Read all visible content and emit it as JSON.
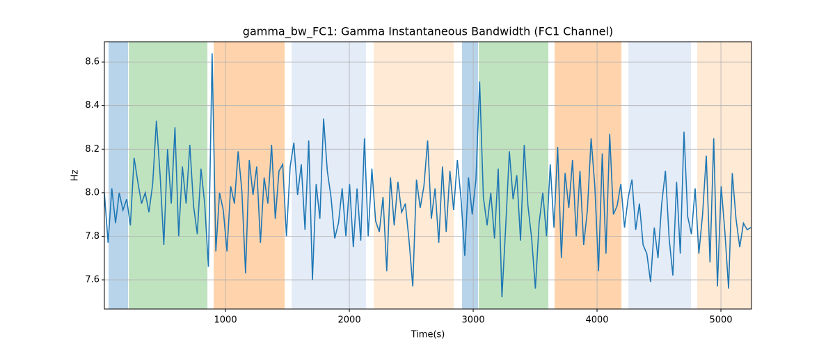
{
  "chart_data": {
    "type": "line",
    "title": "gamma_bw_FC1: Gamma Instantaneous Bandwidth (FC1 Channel)",
    "xlabel": "Time(s)",
    "ylabel": "Hz",
    "x": [
      22,
      52,
      82,
      112,
      142,
      172,
      202,
      232,
      262,
      292,
      322,
      352,
      382,
      412,
      442,
      472,
      502,
      532,
      562,
      592,
      622,
      652,
      682,
      712,
      742,
      772,
      802,
      832,
      862,
      892,
      922,
      952,
      982,
      1012,
      1042,
      1072,
      1102,
      1132,
      1162,
      1192,
      1222,
      1252,
      1282,
      1312,
      1342,
      1372,
      1402,
      1432,
      1462,
      1492,
      1522,
      1552,
      1582,
      1612,
      1642,
      1672,
      1702,
      1732,
      1762,
      1792,
      1822,
      1852,
      1882,
      1912,
      1942,
      1972,
      2002,
      2032,
      2062,
      2092,
      2122,
      2152,
      2182,
      2212,
      2242,
      2272,
      2302,
      2332,
      2362,
      2392,
      2422,
      2452,
      2482,
      2512,
      2542,
      2572,
      2602,
      2632,
      2662,
      2692,
      2722,
      2752,
      2782,
      2812,
      2842,
      2872,
      2902,
      2932,
      2962,
      2992,
      3022,
      3052,
      3082,
      3112,
      3142,
      3172,
      3202,
      3232,
      3262,
      3292,
      3322,
      3352,
      3382,
      3412,
      3442,
      3472,
      3502,
      3532,
      3562,
      3592,
      3622,
      3652,
      3682,
      3712,
      3742,
      3772,
      3802,
      3832,
      3862,
      3892,
      3922,
      3952,
      3982,
      4012,
      4042,
      4072,
      4102,
      4132,
      4162,
      4192,
      4222,
      4252,
      4282,
      4312,
      4342,
      4372,
      4402,
      4432,
      4462,
      4492,
      4522,
      4552,
      4582,
      4612,
      4642,
      4672,
      4702,
      4732,
      4762,
      4792,
      4822,
      4852,
      4882,
      4912,
      4942,
      4972,
      5002,
      5032,
      5062,
      5092,
      5122,
      5152,
      5182,
      5212,
      5242
    ],
    "values": [
      8.0,
      7.77,
      8.02,
      7.86,
      8.0,
      7.92,
      7.97,
      7.85,
      8.16,
      8.05,
      7.95,
      8.0,
      7.91,
      8.04,
      8.33,
      8.08,
      7.76,
      8.2,
      7.95,
      8.3,
      7.8,
      8.12,
      7.95,
      8.22,
      7.94,
      7.81,
      8.11,
      7.95,
      7.66,
      8.64,
      7.73,
      8.0,
      7.92,
      7.73,
      8.03,
      7.95,
      8.19,
      8.01,
      7.63,
      8.15,
      7.99,
      8.12,
      7.77,
      8.07,
      7.95,
      8.22,
      7.88,
      8.1,
      8.13,
      7.8,
      8.12,
      8.23,
      7.99,
      8.13,
      7.83,
      8.24,
      7.6,
      8.04,
      7.88,
      8.34,
      8.1,
      7.98,
      7.79,
      7.86,
      8.02,
      7.8,
      8.04,
      7.75,
      8.02,
      7.78,
      8.25,
      7.8,
      8.11,
      7.87,
      7.82,
      7.98,
      7.64,
      8.07,
      7.85,
      8.05,
      7.91,
      7.95,
      7.78,
      7.57,
      8.06,
      7.93,
      8.03,
      8.24,
      7.88,
      8.02,
      7.77,
      8.12,
      7.82,
      8.1,
      7.92,
      8.15,
      7.97,
      7.71,
      8.07,
      7.9,
      8.06,
      8.51,
      7.98,
      7.85,
      8.0,
      7.79,
      8.11,
      7.52,
      7.84,
      8.19,
      7.97,
      8.08,
      7.78,
      8.22,
      7.94,
      7.79,
      7.56,
      7.86,
      8.0,
      7.8,
      8.13,
      7.84,
      8.21,
      7.7,
      8.09,
      7.93,
      8.15,
      7.8,
      8.1,
      7.76,
      7.92,
      8.25,
      8.03,
      7.64,
      8.18,
      7.72,
      8.27,
      7.9,
      7.94,
      8.04,
      7.84,
      7.98,
      8.06,
      7.83,
      7.95,
      7.76,
      7.72,
      7.59,
      7.84,
      7.7,
      7.95,
      8.1,
      7.79,
      7.62,
      8.05,
      7.72,
      8.28,
      7.89,
      7.81,
      8.02,
      7.72,
      7.9,
      8.17,
      7.68,
      8.25,
      7.57,
      8.03,
      7.82,
      7.56,
      8.09,
      7.88,
      7.75,
      7.86,
      7.83,
      7.84
    ],
    "color": "#1f77b4",
    "spans": [
      {
        "x0": 56,
        "x1": 213,
        "color": "#b8d4ea"
      },
      {
        "x0": 219,
        "x1": 854,
        "color": "#c0e3bf"
      },
      {
        "x0": 904,
        "x1": 1478,
        "color": "#ffd4ad"
      },
      {
        "x0": 1534,
        "x1": 2135,
        "color": "#e4ecf7"
      },
      {
        "x0": 2197,
        "x1": 2843,
        "color": "#ffead5"
      },
      {
        "x0": 2910,
        "x1": 3039,
        "color": "#b8d4ea"
      },
      {
        "x0": 3045,
        "x1": 3607,
        "color": "#c0e3bf"
      },
      {
        "x0": 3657,
        "x1": 4197,
        "color": "#ffd4ad"
      },
      {
        "x0": 4253,
        "x1": 4758,
        "color": "#e4ecf7"
      },
      {
        "x0": 4809,
        "x1": 5247,
        "color": "#ffead5"
      }
    ],
    "xlim": [
      22,
      5247
    ],
    "ylim": [
      7.466,
      8.693
    ],
    "xticks": [
      1000,
      2000,
      3000,
      4000,
      5000
    ],
    "yticks": [
      7.6,
      7.8,
      {
        "value": 8,
        "label": "8.0"
      },
      8.2,
      8.4,
      8.6
    ],
    "grid": true
  }
}
